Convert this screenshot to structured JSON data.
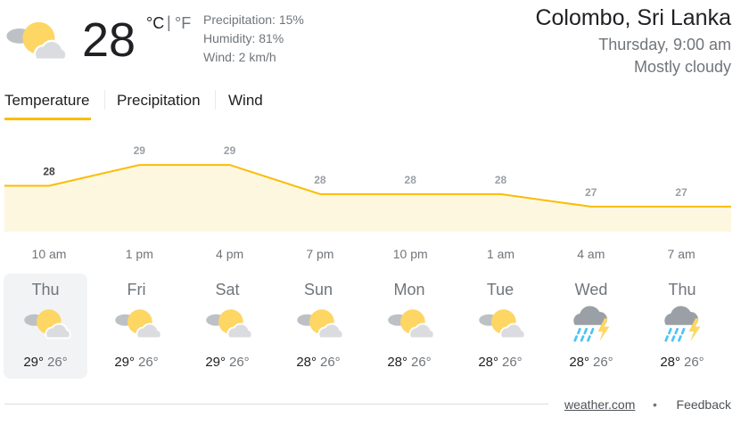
{
  "current": {
    "temperature": "28",
    "unit_c": "°C",
    "unit_separator": "|",
    "unit_f": "°F",
    "precipitation": "Precipitation: 15%",
    "humidity": "Humidity: 81%",
    "wind": "Wind: 2 km/h"
  },
  "location": {
    "place": "Colombo, Sri Lanka",
    "time": "Thursday, 9:00 am",
    "condition": "Mostly cloudy"
  },
  "tabs": [
    "Temperature",
    "Precipitation",
    "Wind"
  ],
  "chart_data": {
    "type": "area",
    "x": [
      "10 am",
      "1 pm",
      "4 pm",
      "7 pm",
      "10 pm",
      "1 am",
      "4 am",
      "7 am"
    ],
    "values": [
      28,
      29,
      29,
      27.6,
      27.6,
      27.6,
      27,
      27
    ],
    "value_labels": [
      "28",
      "29",
      "29",
      "28",
      "28",
      "28",
      "27",
      "27"
    ],
    "ylim": [
      25.8,
      30.5
    ],
    "color": "#fbbc04",
    "fill": "#fef7e0"
  },
  "days": [
    {
      "day": "Thu",
      "high": "29°",
      "low": "26°"
    },
    {
      "day": "Fri",
      "high": "29°",
      "low": "26°"
    },
    {
      "day": "Sat",
      "high": "29°",
      "low": "26°"
    },
    {
      "day": "Sun",
      "high": "28°",
      "low": "26°"
    },
    {
      "day": "Mon",
      "high": "28°",
      "low": "26°"
    },
    {
      "day": "Tue",
      "high": "28°",
      "low": "26°"
    },
    {
      "day": "Wed",
      "high": "28°",
      "low": "26°"
    },
    {
      "day": "Thu",
      "high": "28°",
      "low": "26°"
    }
  ],
  "footer": {
    "source": "weather.com",
    "separator": "•",
    "feedback": "Feedback"
  }
}
